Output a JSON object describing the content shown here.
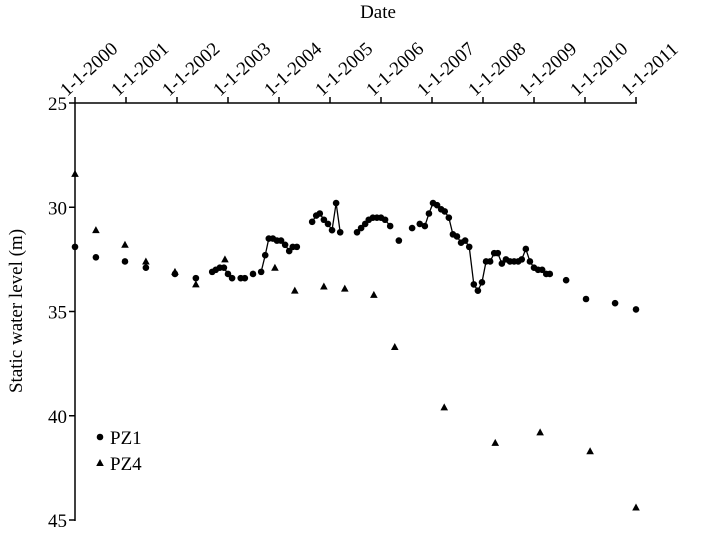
{
  "chart_data": {
    "type": "scatter",
    "title": "Date",
    "y_label": "Static water level (m)",
    "xlim": [
      2000,
      2011
    ],
    "xticks": [
      {
        "value": 2000,
        "label": "1-1-2000"
      },
      {
        "value": 2001,
        "label": "1-1-2001"
      },
      {
        "value": 2002,
        "label": "1-1-2002"
      },
      {
        "value": 2003,
        "label": "1-1-2003"
      },
      {
        "value": 2004,
        "label": "1-1-2004"
      },
      {
        "value": 2005,
        "label": "1-1-2005"
      },
      {
        "value": 2006,
        "label": "1-1-2006"
      },
      {
        "value": 2007,
        "label": "1-1-2007"
      },
      {
        "value": 2008,
        "label": "1-1-2008"
      },
      {
        "value": 2009,
        "label": "1-1-2009"
      },
      {
        "value": 2010,
        "label": "1-1-2010"
      },
      {
        "value": 2011,
        "label": "1-1-2011"
      }
    ],
    "ylim": [
      25,
      45
    ],
    "yticks": [
      25,
      30,
      35,
      40,
      45
    ],
    "y_inverted": true,
    "legend": "lower left",
    "series": [
      {
        "name": "PZ1",
        "color": "#000000",
        "marker": "circle",
        "connected": true,
        "x": [
          2000.0,
          2000.41,
          2000.98,
          2001.39,
          2001.96,
          2002.37,
          2002.69,
          2002.76,
          2002.84,
          2002.92,
          2003.0,
          2003.08,
          2003.25,
          2003.33,
          2003.49,
          2003.65,
          2003.73,
          2003.8,
          2003.88,
          2003.96,
          2004.04,
          2004.12,
          2004.2,
          2004.27,
          2004.35,
          2004.65,
          2004.73,
          2004.8,
          2004.88,
          2004.96,
          2005.04,
          2005.12,
          2005.2,
          2005.53,
          2005.61,
          2005.69,
          2005.76,
          2005.84,
          2005.92,
          2006.0,
          2006.08,
          2006.18,
          2006.35,
          2006.61,
          2006.76,
          2006.86,
          2006.94,
          2007.02,
          2007.1,
          2007.18,
          2007.25,
          2007.33,
          2007.41,
          2007.49,
          2007.57,
          2007.65,
          2007.73,
          2007.82,
          2007.9,
          2007.98,
          2008.06,
          2008.14,
          2008.22,
          2008.29,
          2008.37,
          2008.45,
          2008.53,
          2008.61,
          2008.69,
          2008.76,
          2008.84,
          2008.92,
          2009.0,
          2009.08,
          2009.16,
          2009.24,
          2009.31,
          2009.63,
          2010.02,
          2010.59,
          2011.0
        ],
        "values": [
          31.9,
          32.4,
          32.6,
          32.9,
          33.2,
          33.4,
          33.1,
          33.0,
          32.9,
          32.9,
          33.2,
          33.4,
          33.4,
          33.4,
          33.2,
          33.1,
          32.3,
          31.5,
          31.5,
          31.6,
          31.6,
          31.8,
          32.1,
          31.9,
          31.9,
          30.7,
          30.4,
          30.3,
          30.6,
          30.8,
          31.1,
          29.8,
          31.2,
          31.2,
          31.0,
          30.8,
          30.6,
          30.5,
          30.5,
          30.5,
          30.6,
          30.9,
          31.6,
          31.0,
          30.8,
          30.9,
          30.3,
          29.8,
          29.9,
          30.1,
          30.2,
          30.5,
          31.3,
          31.4,
          31.7,
          31.6,
          31.9,
          33.7,
          34.0,
          33.6,
          32.6,
          32.6,
          32.2,
          32.2,
          32.7,
          32.5,
          32.6,
          32.6,
          32.6,
          32.5,
          32.0,
          32.6,
          32.9,
          33.0,
          33.0,
          33.2,
          33.2,
          33.5,
          34.4,
          34.6,
          34.9
        ]
      },
      {
        "name": "PZ4",
        "color": "#000000",
        "marker": "triangle",
        "connected": false,
        "x": [
          2000.0,
          2000.41,
          2000.98,
          2001.39,
          2001.96,
          2002.37,
          2002.94,
          2003.92,
          2004.31,
          2004.88,
          2005.29,
          2005.86,
          2006.27,
          2007.24,
          2008.24,
          2009.12,
          2010.1,
          2011.0
        ],
        "values": [
          28.4,
          31.1,
          31.8,
          32.6,
          33.1,
          33.7,
          32.5,
          32.9,
          34.0,
          33.8,
          33.9,
          34.2,
          36.7,
          39.6,
          41.3,
          40.8,
          41.7,
          44.4
        ]
      }
    ]
  }
}
